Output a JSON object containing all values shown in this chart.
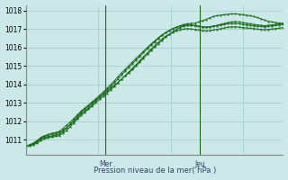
{
  "xlabel": "Pression niveau de la mer( hPa )",
  "background_color": "#cce8e8",
  "grid_color": "#99cccc",
  "line_color": "#1a6b1a",
  "ylim": [
    1010.2,
    1018.3
  ],
  "xlim": [
    0,
    71
  ],
  "yticks": [
    1011,
    1012,
    1013,
    1014,
    1015,
    1016,
    1017,
    1018
  ],
  "vlines_x": [
    22,
    48
  ],
  "vline_labels": [
    "Mer",
    "Jeu"
  ],
  "series": [
    [
      1010.65,
      1010.72,
      1010.8,
      1010.92,
      1011.1,
      1011.18,
      1011.22,
      1011.28,
      1011.32,
      1011.38,
      1011.5,
      1011.65,
      1011.82,
      1012.0,
      1012.2,
      1012.4,
      1012.55,
      1012.72,
      1012.9,
      1013.1,
      1013.28,
      1013.45,
      1013.62,
      1013.8,
      1013.95,
      1014.1,
      1014.28,
      1014.45,
      1014.62,
      1014.8,
      1015.0,
      1015.2,
      1015.42,
      1015.62,
      1015.82,
      1016.02,
      1016.2,
      1016.38,
      1016.55,
      1016.7,
      1016.85,
      1016.98,
      1017.08,
      1017.15,
      1017.2,
      1017.22,
      1017.2,
      1017.15,
      1017.12,
      1017.1,
      1017.12,
      1017.15,
      1017.18,
      1017.22,
      1017.25,
      1017.28,
      1017.3,
      1017.3,
      1017.28,
      1017.25,
      1017.22,
      1017.2,
      1017.18,
      1017.15,
      1017.14,
      1017.12,
      1017.15,
      1017.18,
      1017.2,
      1017.22,
      1017.25
    ],
    [
      1010.65,
      1010.72,
      1010.82,
      1010.95,
      1011.12,
      1011.22,
      1011.28,
      1011.35,
      1011.38,
      1011.45,
      1011.6,
      1011.78,
      1011.95,
      1012.15,
      1012.35,
      1012.55,
      1012.72,
      1012.88,
      1013.05,
      1013.22,
      1013.4,
      1013.58,
      1013.78,
      1013.98,
      1014.18,
      1014.4,
      1014.62,
      1014.82,
      1015.02,
      1015.22,
      1015.42,
      1015.6,
      1015.8,
      1016.0,
      1016.18,
      1016.35,
      1016.52,
      1016.68,
      1016.8,
      1016.92,
      1017.02,
      1017.1,
      1017.16,
      1017.2,
      1017.22,
      1017.2,
      1017.18,
      1017.14,
      1017.12,
      1017.1,
      1017.12,
      1017.16,
      1017.2,
      1017.25,
      1017.3,
      1017.35,
      1017.38,
      1017.4,
      1017.38,
      1017.35,
      1017.32,
      1017.28,
      1017.25,
      1017.22,
      1017.2,
      1017.18,
      1017.2,
      1017.22,
      1017.25,
      1017.28,
      1017.32
    ],
    [
      1010.65,
      1010.68,
      1010.72,
      1010.82,
      1010.95,
      1011.05,
      1011.1,
      1011.14,
      1011.18,
      1011.22,
      1011.35,
      1011.5,
      1011.7,
      1011.9,
      1012.12,
      1012.32,
      1012.48,
      1012.65,
      1012.82,
      1013.0,
      1013.18,
      1013.35,
      1013.52,
      1013.7,
      1013.88,
      1014.08,
      1014.28,
      1014.48,
      1014.68,
      1014.88,
      1015.08,
      1015.28,
      1015.5,
      1015.7,
      1015.9,
      1016.1,
      1016.28,
      1016.45,
      1016.6,
      1016.72,
      1016.82,
      1016.9,
      1016.96,
      1017.0,
      1017.02,
      1017.0,
      1016.98,
      1016.95,
      1016.92,
      1016.9,
      1016.92,
      1016.95,
      1016.98,
      1017.02,
      1017.06,
      1017.1,
      1017.12,
      1017.12,
      1017.1,
      1017.08,
      1017.06,
      1017.04,
      1017.02,
      1017.0,
      1016.98,
      1016.96,
      1016.98,
      1017.0,
      1017.02,
      1017.05,
      1017.08
    ],
    [
      1010.65,
      1010.7,
      1010.78,
      1010.88,
      1011.02,
      1011.12,
      1011.16,
      1011.2,
      1011.25,
      1011.3,
      1011.45,
      1011.62,
      1011.82,
      1012.05,
      1012.28,
      1012.48,
      1012.65,
      1012.82,
      1012.98,
      1013.15,
      1013.32,
      1013.5,
      1013.68,
      1013.88,
      1014.08,
      1014.28,
      1014.5,
      1014.72,
      1014.92,
      1015.12,
      1015.32,
      1015.52,
      1015.72,
      1015.92,
      1016.12,
      1016.3,
      1016.48,
      1016.65,
      1016.8,
      1016.92,
      1017.02,
      1017.1,
      1017.18,
      1017.25,
      1017.28,
      1017.3,
      1017.32,
      1017.38,
      1017.45,
      1017.52,
      1017.6,
      1017.68,
      1017.72,
      1017.75,
      1017.78,
      1017.8,
      1017.82,
      1017.82,
      1017.8,
      1017.78,
      1017.75,
      1017.72,
      1017.68,
      1017.62,
      1017.55,
      1017.48,
      1017.42,
      1017.38,
      1017.35,
      1017.32,
      1017.3
    ]
  ]
}
